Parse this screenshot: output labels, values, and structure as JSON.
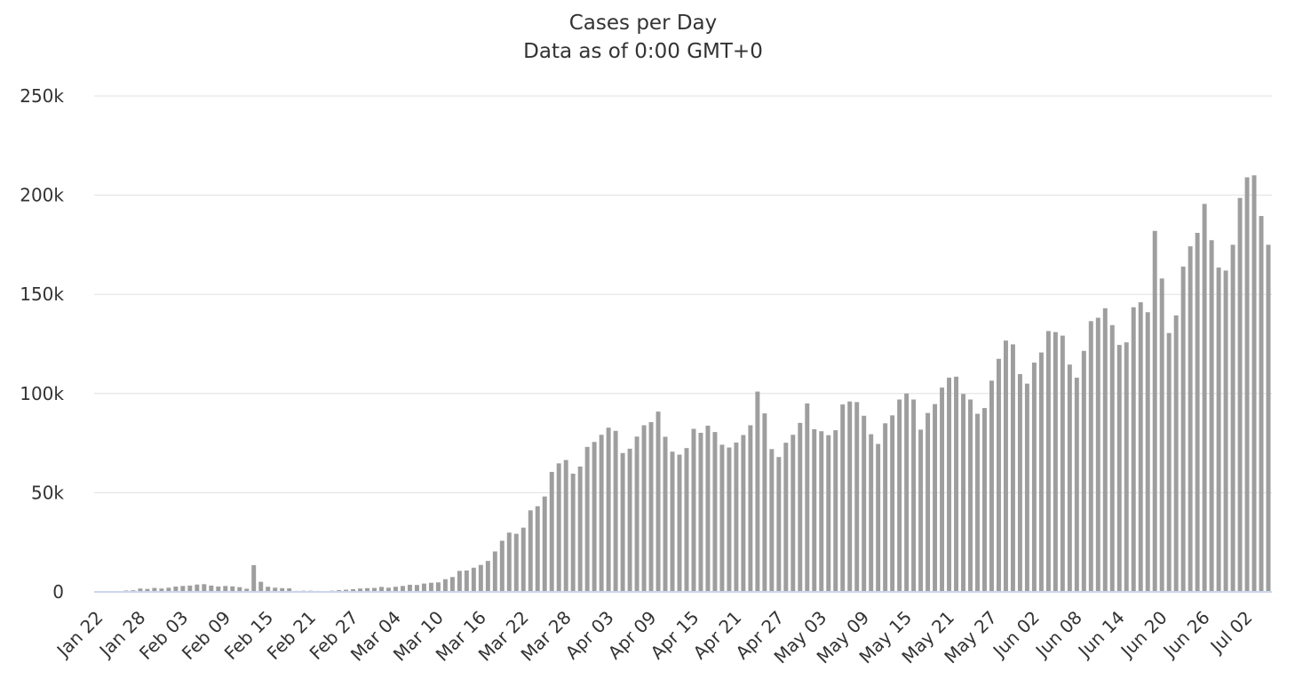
{
  "chart_data": {
    "type": "bar",
    "title": "Cases per Day",
    "subtitle": "Data as of 0:00 GMT+0",
    "xlabel": "",
    "ylabel": "",
    "ylim": [
      0,
      250000
    ],
    "yticks": [
      0,
      50000,
      100000,
      150000,
      200000,
      250000
    ],
    "ytick_labels": [
      "0",
      "50k",
      "100k",
      "150k",
      "200k",
      "250k"
    ],
    "xtick_labels": [
      "Jan 22",
      "Jan 28",
      "Feb 03",
      "Feb 09",
      "Feb 15",
      "Feb 21",
      "Feb 27",
      "Mar 04",
      "Mar 10",
      "Mar 16",
      "Mar 22",
      "Mar 28",
      "Apr 03",
      "Apr 09",
      "Apr 15",
      "Apr 21",
      "Apr 27",
      "May 03",
      "May 09",
      "May 15",
      "May 21",
      "May 27",
      "Jun 02",
      "Jun 08",
      "Jun 14",
      "Jun 20",
      "Jun 26",
      "Jul 02"
    ],
    "xtick_every": 6,
    "grid": true,
    "bar_color": "#9e9e9e",
    "axis_color": "#ccd6eb",
    "categories": [
      "Jan 22",
      "Jan 23",
      "Jan 24",
      "Jan 25",
      "Jan 26",
      "Jan 27",
      "Jan 28",
      "Jan 29",
      "Jan 30",
      "Jan 31",
      "Feb 01",
      "Feb 02",
      "Feb 03",
      "Feb 04",
      "Feb 05",
      "Feb 06",
      "Feb 07",
      "Feb 08",
      "Feb 09",
      "Feb 10",
      "Feb 11",
      "Feb 12",
      "Feb 13",
      "Feb 14",
      "Feb 15",
      "Feb 16",
      "Feb 17",
      "Feb 18",
      "Feb 19",
      "Feb 20",
      "Feb 21",
      "Feb 22",
      "Feb 23",
      "Feb 24",
      "Feb 25",
      "Feb 26",
      "Feb 27",
      "Feb 28",
      "Feb 29",
      "Mar 01",
      "Mar 02",
      "Mar 03",
      "Mar 04",
      "Mar 05",
      "Mar 06",
      "Mar 07",
      "Mar 08",
      "Mar 09",
      "Mar 10",
      "Mar 11",
      "Mar 12",
      "Mar 13",
      "Mar 14",
      "Mar 15",
      "Mar 16",
      "Mar 17",
      "Mar 18",
      "Mar 19",
      "Mar 20",
      "Mar 21",
      "Mar 22",
      "Mar 23",
      "Mar 24",
      "Mar 25",
      "Mar 26",
      "Mar 27",
      "Mar 28",
      "Mar 29",
      "Mar 30",
      "Mar 31",
      "Apr 01",
      "Apr 02",
      "Apr 03",
      "Apr 04",
      "Apr 05",
      "Apr 06",
      "Apr 07",
      "Apr 08",
      "Apr 09",
      "Apr 10",
      "Apr 11",
      "Apr 12",
      "Apr 13",
      "Apr 14",
      "Apr 15",
      "Apr 16",
      "Apr 17",
      "Apr 18",
      "Apr 19",
      "Apr 20",
      "Apr 21",
      "Apr 22",
      "Apr 23",
      "Apr 24",
      "Apr 25",
      "Apr 26",
      "Apr 27",
      "Apr 28",
      "Apr 29",
      "Apr 30",
      "May 01",
      "May 02",
      "May 03",
      "May 04",
      "May 05",
      "May 06",
      "May 07",
      "May 08",
      "May 09",
      "May 10",
      "May 11",
      "May 12",
      "May 13",
      "May 14",
      "May 15",
      "May 16",
      "May 17",
      "May 18",
      "May 19",
      "May 20",
      "May 21",
      "May 22",
      "May 23",
      "May 24",
      "May 25",
      "May 26",
      "May 27",
      "May 28",
      "May 29",
      "May 30",
      "May 31",
      "Jun 01",
      "Jun 02",
      "Jun 03",
      "Jun 04",
      "Jun 05",
      "Jun 06",
      "Jun 07",
      "Jun 08",
      "Jun 09",
      "Jun 10",
      "Jun 11",
      "Jun 12",
      "Jun 13",
      "Jun 14",
      "Jun 15",
      "Jun 16",
      "Jun 17",
      "Jun 18",
      "Jun 19",
      "Jun 20",
      "Jun 21",
      "Jun 22",
      "Jun 23",
      "Jun 24",
      "Jun 25",
      "Jun 26",
      "Jun 27",
      "Jun 28",
      "Jun 29",
      "Jun 30",
      "Jul 01",
      "Jul 02",
      "Jul 03",
      "Jul 04",
      "Jul 05"
    ],
    "values": [
      100,
      100,
      200,
      300,
      700,
      800,
      1700,
      1500,
      2000,
      1700,
      2100,
      2700,
      3000,
      3200,
      3700,
      3900,
      3200,
      2700,
      3000,
      2800,
      2400,
      1600,
      13500,
      5100,
      2600,
      2100,
      1900,
      1800,
      500,
      600,
      600,
      500,
      200,
      600,
      900,
      1100,
      1400,
      1700,
      1900,
      2000,
      2500,
      2100,
      2600,
      3000,
      3600,
      3500,
      4200,
      4600,
      4800,
      6400,
      7500,
      10600,
      10800,
      12200,
      13600,
      15600,
      20400,
      25800,
      29900,
      29300,
      32400,
      41100,
      43200,
      48100,
      60500,
      64800,
      66500,
      59600,
      63200,
      73100,
      75600,
      79200,
      82800,
      81200,
      70000,
      72200,
      78300,
      84000,
      85600,
      90900,
      78200,
      70700,
      69200,
      72500,
      82200,
      80200,
      83800,
      80600,
      74200,
      72800,
      75300,
      79100,
      84000,
      101000,
      90000,
      72000,
      68000,
      75200,
      79200,
      85200,
      95000,
      82000,
      81000,
      79000,
      81500,
      94500,
      96000,
      95700,
      88800,
      79500,
      74600,
      85000,
      89000,
      97000,
      100000,
      97000,
      81800,
      90200,
      94700,
      103000,
      108000,
      108500,
      99800,
      97000,
      89800,
      92700,
      106500,
      117500,
      126700,
      124800,
      109800,
      105000,
      115600,
      120700,
      131500,
      131000,
      129200,
      114600,
      108000,
      121500,
      136500,
      138200,
      143000,
      134500,
      124500,
      125800,
      143500,
      146000,
      141000,
      182000,
      158000,
      130500,
      139400,
      164000,
      174200,
      181000,
      195600,
      177300,
      163500,
      162000,
      175000,
      198600,
      209000,
      210000,
      189500,
      175000
    ]
  }
}
